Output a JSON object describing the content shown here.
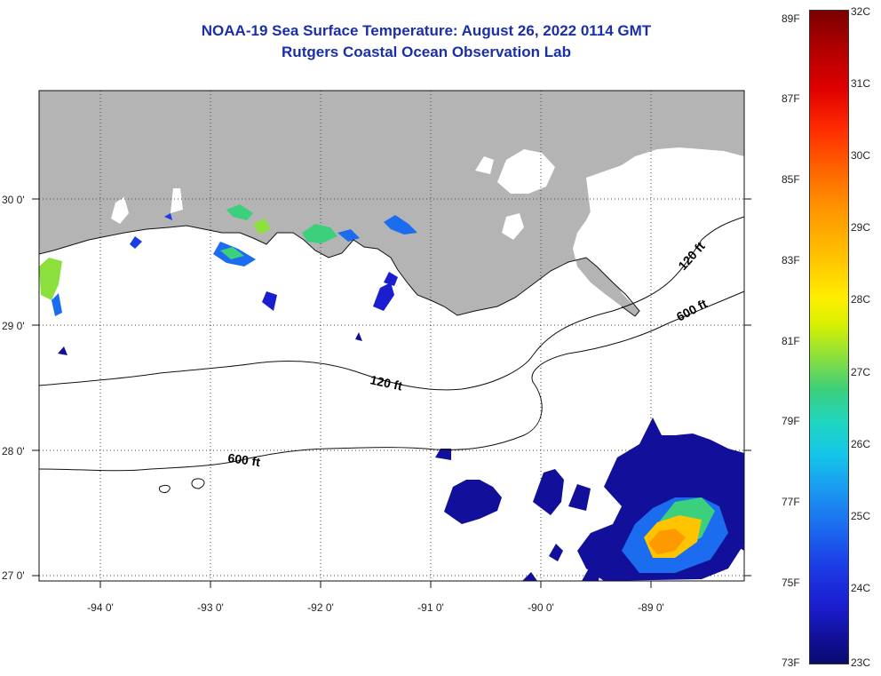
{
  "title": {
    "line1": "NOAA-19 Sea Surface Temperature:  August 26, 2022 0114 GMT",
    "line2": "Rutgers Coastal Ocean Observation Lab"
  },
  "map": {
    "lat_ticks": [
      "30 0'",
      "29 0'",
      "28 0'",
      "27 0'"
    ],
    "lon_ticks": [
      "-94 0'",
      "-93 0'",
      "-92 0'",
      "-91 0'",
      "-90 0'",
      "-89 0'"
    ],
    "contours": {
      "shelf_120_nearshore": "120 ft",
      "shelf_600_nearshore": "600 ft",
      "shelf_120_offshore": "120 ft",
      "shelf_600_offshore": "600 ft"
    }
  },
  "colorbar": {
    "fahrenheit": [
      "89F",
      "87F",
      "85F",
      "83F",
      "81F",
      "79F",
      "77F",
      "75F",
      "73F"
    ],
    "celsius": [
      "32C",
      "31C",
      "30C",
      "29C",
      "28C",
      "27C",
      "26C",
      "25C",
      "24C",
      "23C"
    ]
  },
  "colors": {
    "title": "#1a2fa8",
    "land": "#b4b4b4",
    "cold": "#12109a",
    "warm": "#ff9900"
  }
}
